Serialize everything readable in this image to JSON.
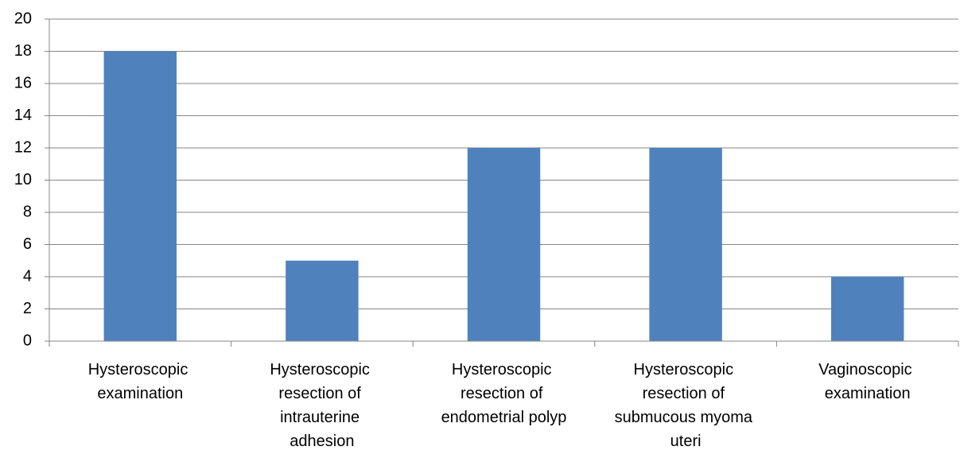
{
  "chart_data": {
    "type": "bar",
    "categories": [
      "Hysteroscopic examination",
      "Hysteroscopic resection of intrauterine adhesion",
      "Hysteroscopic resection of endometrial polyp",
      "Hysteroscopic resection of submucous myoma uteri",
      "Vaginoscopic examination"
    ],
    "values": [
      18,
      5,
      12,
      12,
      4
    ],
    "color": "#4f81bd",
    "ylim": [
      0,
      20
    ],
    "yticks": [
      0,
      2,
      4,
      6,
      8,
      10,
      12,
      14,
      16,
      18,
      20
    ],
    "grid": true
  }
}
